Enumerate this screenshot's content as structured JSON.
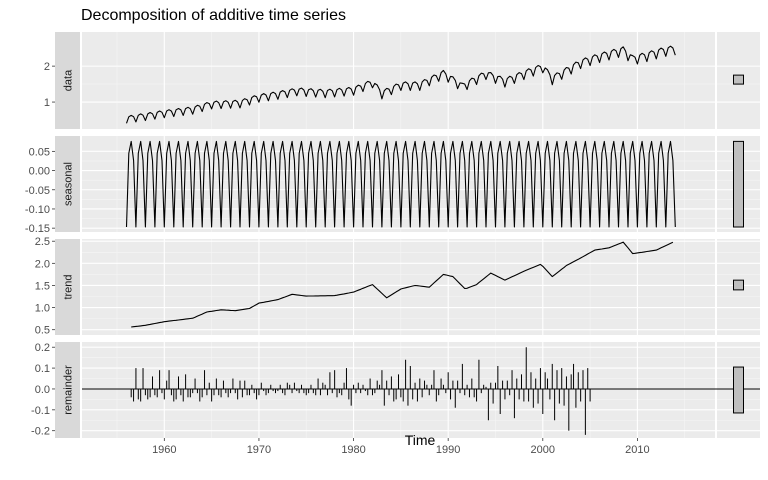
{
  "chart_data": {
    "type": "line",
    "title": "Decomposition of additive time series",
    "xlabel": "Time",
    "xlim": [
      1951.3,
      2018.2
    ],
    "x_ticks": [
      1960,
      1970,
      1980,
      1990,
      2000,
      2010
    ],
    "x_tick_labels": [
      "1960",
      "1970",
      "1980",
      "1990",
      "2000",
      "2010"
    ],
    "grid": true,
    "theme": {
      "panel_bg": "#ebebeb",
      "strip_bg": "#d9d9d9",
      "grid_major": "#ffffff",
      "grid_minor": "#f5f5f5",
      "line_color": "#000000",
      "range_bar_fill": "#bfbfbf"
    },
    "panels": [
      {
        "name": "data",
        "ylim": [
          0.25,
          2.95
        ],
        "y_ticks": [
          1,
          2
        ],
        "y_tick_labels": [
          "1",
          "2"
        ],
        "range_bar": [
          1.5,
          1.75
        ],
        "time_start": 1956,
        "frequency": 4,
        "start_value": 0.54,
        "points": [
          [
            1956,
            0.54
          ],
          [
            1960,
            0.7
          ],
          [
            1963,
            0.8
          ],
          [
            1965,
            0.95
          ],
          [
            1968,
            0.98
          ],
          [
            1970,
            1.14
          ],
          [
            1972,
            1.22
          ],
          [
            1974,
            1.32
          ],
          [
            1977,
            1.27
          ],
          [
            1980,
            1.34
          ],
          [
            1982,
            1.55
          ],
          [
            1983,
            1.24
          ],
          [
            1985,
            1.48
          ],
          [
            1987,
            1.48
          ],
          [
            1989.5,
            1.8
          ],
          [
            1991.5,
            1.44
          ],
          [
            1994,
            1.79
          ],
          [
            1996,
            1.58
          ],
          [
            1998.5,
            1.84
          ],
          [
            2000,
            1.98
          ],
          [
            2001,
            1.65
          ],
          [
            2004,
            2.1
          ],
          [
            2006,
            2.27
          ],
          [
            2008.5,
            2.45
          ],
          [
            2009.5,
            2.2
          ],
          [
            2011,
            2.3
          ],
          [
            2013,
            2.45
          ],
          [
            2014,
            2.48
          ]
        ]
      },
      {
        "name": "seasonal",
        "ylim": [
          -0.16,
          0.09
        ],
        "y_ticks": [
          0.05,
          0.0,
          -0.05,
          -0.1,
          -0.15
        ],
        "y_tick_labels": [
          "0.05",
          "0.00",
          "-0.05",
          "-0.10",
          "-0.15"
        ],
        "range_bar": [
          -0.147,
          0.076
        ],
        "time_start": 1956,
        "frequency": 4,
        "period_pattern": [
          -0.147,
          0.045,
          0.076,
          0.026
        ]
      },
      {
        "name": "trend",
        "ylim": [
          0.38,
          2.55
        ],
        "y_ticks": [
          0.5,
          1.0,
          1.5,
          2.0,
          2.5
        ],
        "y_tick_labels": [
          "0.5",
          "1.0",
          "1.5",
          "2.0",
          "2.5"
        ],
        "range_bar": [
          1.4,
          1.62
        ],
        "time_start": 1956.5,
        "frequency": 4,
        "points": [
          [
            1956.5,
            0.56
          ],
          [
            1958,
            0.6
          ],
          [
            1960,
            0.68
          ],
          [
            1961.5,
            0.72
          ],
          [
            1963,
            0.76
          ],
          [
            1964.5,
            0.9
          ],
          [
            1966,
            0.95
          ],
          [
            1967.5,
            0.93
          ],
          [
            1969,
            0.98
          ],
          [
            1970,
            1.1
          ],
          [
            1972,
            1.18
          ],
          [
            1973.5,
            1.3
          ],
          [
            1975,
            1.26
          ],
          [
            1978,
            1.27
          ],
          [
            1980,
            1.35
          ],
          [
            1982,
            1.52
          ],
          [
            1983.5,
            1.22
          ],
          [
            1985,
            1.42
          ],
          [
            1986.5,
            1.5
          ],
          [
            1988,
            1.46
          ],
          [
            1989.5,
            1.75
          ],
          [
            1990.5,
            1.7
          ],
          [
            1991.8,
            1.42
          ],
          [
            1993,
            1.52
          ],
          [
            1994.5,
            1.78
          ],
          [
            1996,
            1.62
          ],
          [
            1998,
            1.82
          ],
          [
            1999.8,
            1.98
          ],
          [
            2001,
            1.7
          ],
          [
            2002.5,
            1.95
          ],
          [
            2004,
            2.12
          ],
          [
            2005.5,
            2.3
          ],
          [
            2007,
            2.35
          ],
          [
            2008.5,
            2.48
          ],
          [
            2009.5,
            2.22
          ],
          [
            2010.5,
            2.25
          ],
          [
            2012,
            2.3
          ],
          [
            2013.5,
            2.45
          ],
          [
            2013.8,
            2.48
          ]
        ]
      },
      {
        "name": "remainder",
        "ylim": [
          -0.235,
          0.225
        ],
        "y_ticks": [
          0.2,
          0.1,
          0.0,
          -0.1,
          -0.2
        ],
        "y_tick_labels": [
          "0.2",
          "0.1",
          "0.0",
          "-0.1",
          "-0.2"
        ],
        "range_bar": [
          -0.115,
          0.105
        ],
        "time_start": 1956.5,
        "frequency": 4,
        "bars": [
          -0.04,
          -0.06,
          0.1,
          -0.05,
          -0.06,
          0.1,
          -0.03,
          -0.05,
          -0.04,
          0.06,
          -0.03,
          -0.04,
          0.09,
          -0.02,
          -0.05,
          0.04,
          0.09,
          -0.03,
          -0.06,
          -0.05,
          0.06,
          -0.03,
          -0.06,
          0.07,
          -0.04,
          -0.04,
          -0.02,
          0.05,
          -0.02,
          -0.06,
          -0.04,
          0.09,
          -0.03,
          0.03,
          -0.06,
          -0.03,
          0.05,
          -0.03,
          -0.04,
          0.04,
          -0.02,
          -0.04,
          -0.02,
          0.05,
          -0.02,
          -0.05,
          0.04,
          -0.04,
          0.04,
          -0.03,
          -0.03,
          0.02,
          -0.02,
          -0.05,
          -0.03,
          0.03,
          -0.01,
          -0.03,
          -0.02,
          0.02,
          -0.01,
          -0.02,
          -0.01,
          0.02,
          -0.02,
          -0.03,
          0.03,
          0.02,
          -0.02,
          0.03,
          -0.01,
          -0.02,
          0.02,
          -0.02,
          -0.03,
          -0.02,
          0.02,
          -0.02,
          -0.03,
          0.05,
          -0.03,
          0.03,
          0.02,
          -0.03,
          0.08,
          -0.02,
          0.09,
          -0.04,
          -0.02,
          -0.03,
          0.03,
          0.1,
          -0.05,
          -0.08,
          0.02,
          -0.02,
          0.03,
          -0.02,
          0.02,
          -0.01,
          -0.03,
          0.05,
          -0.03,
          -0.02,
          0.04,
          0.02,
          0.09,
          -0.08,
          0.04,
          -0.03,
          0.06,
          -0.06,
          -0.05,
          0.07,
          -0.04,
          -0.06,
          0.14,
          -0.08,
          0.11,
          -0.05,
          0.03,
          -0.06,
          0.05,
          -0.04,
          0.04,
          0.02,
          -0.03,
          0.02,
          0.09,
          -0.06,
          -0.03,
          0.05,
          0.02,
          -0.02,
          0.08,
          -0.05,
          0.04,
          -0.09,
          0.04,
          -0.02,
          0.12,
          -0.03,
          0.02,
          -0.04,
          0.05,
          -0.04,
          -0.06,
          0.14,
          -0.02,
          0.02,
          0.01,
          -0.15,
          0.03,
          -0.07,
          0.03,
          0.11,
          -0.12,
          0.04,
          -0.05,
          0.04,
          -0.03,
          0.09,
          -0.14,
          0.05,
          -0.05,
          0.07,
          -0.06,
          0.2,
          -0.06,
          0.08,
          -0.09,
          0.05,
          -0.07,
          0.1,
          -0.12,
          0.08,
          0.05,
          -0.05,
          0.12,
          -0.15,
          0.09,
          -0.07,
          0.1,
          -0.08,
          0.06,
          -0.2,
          0.07,
          0.12,
          -0.09,
          0.08,
          -0.06,
          0.09,
          -0.22,
          0.1,
          -0.06
        ]
      }
    ]
  }
}
